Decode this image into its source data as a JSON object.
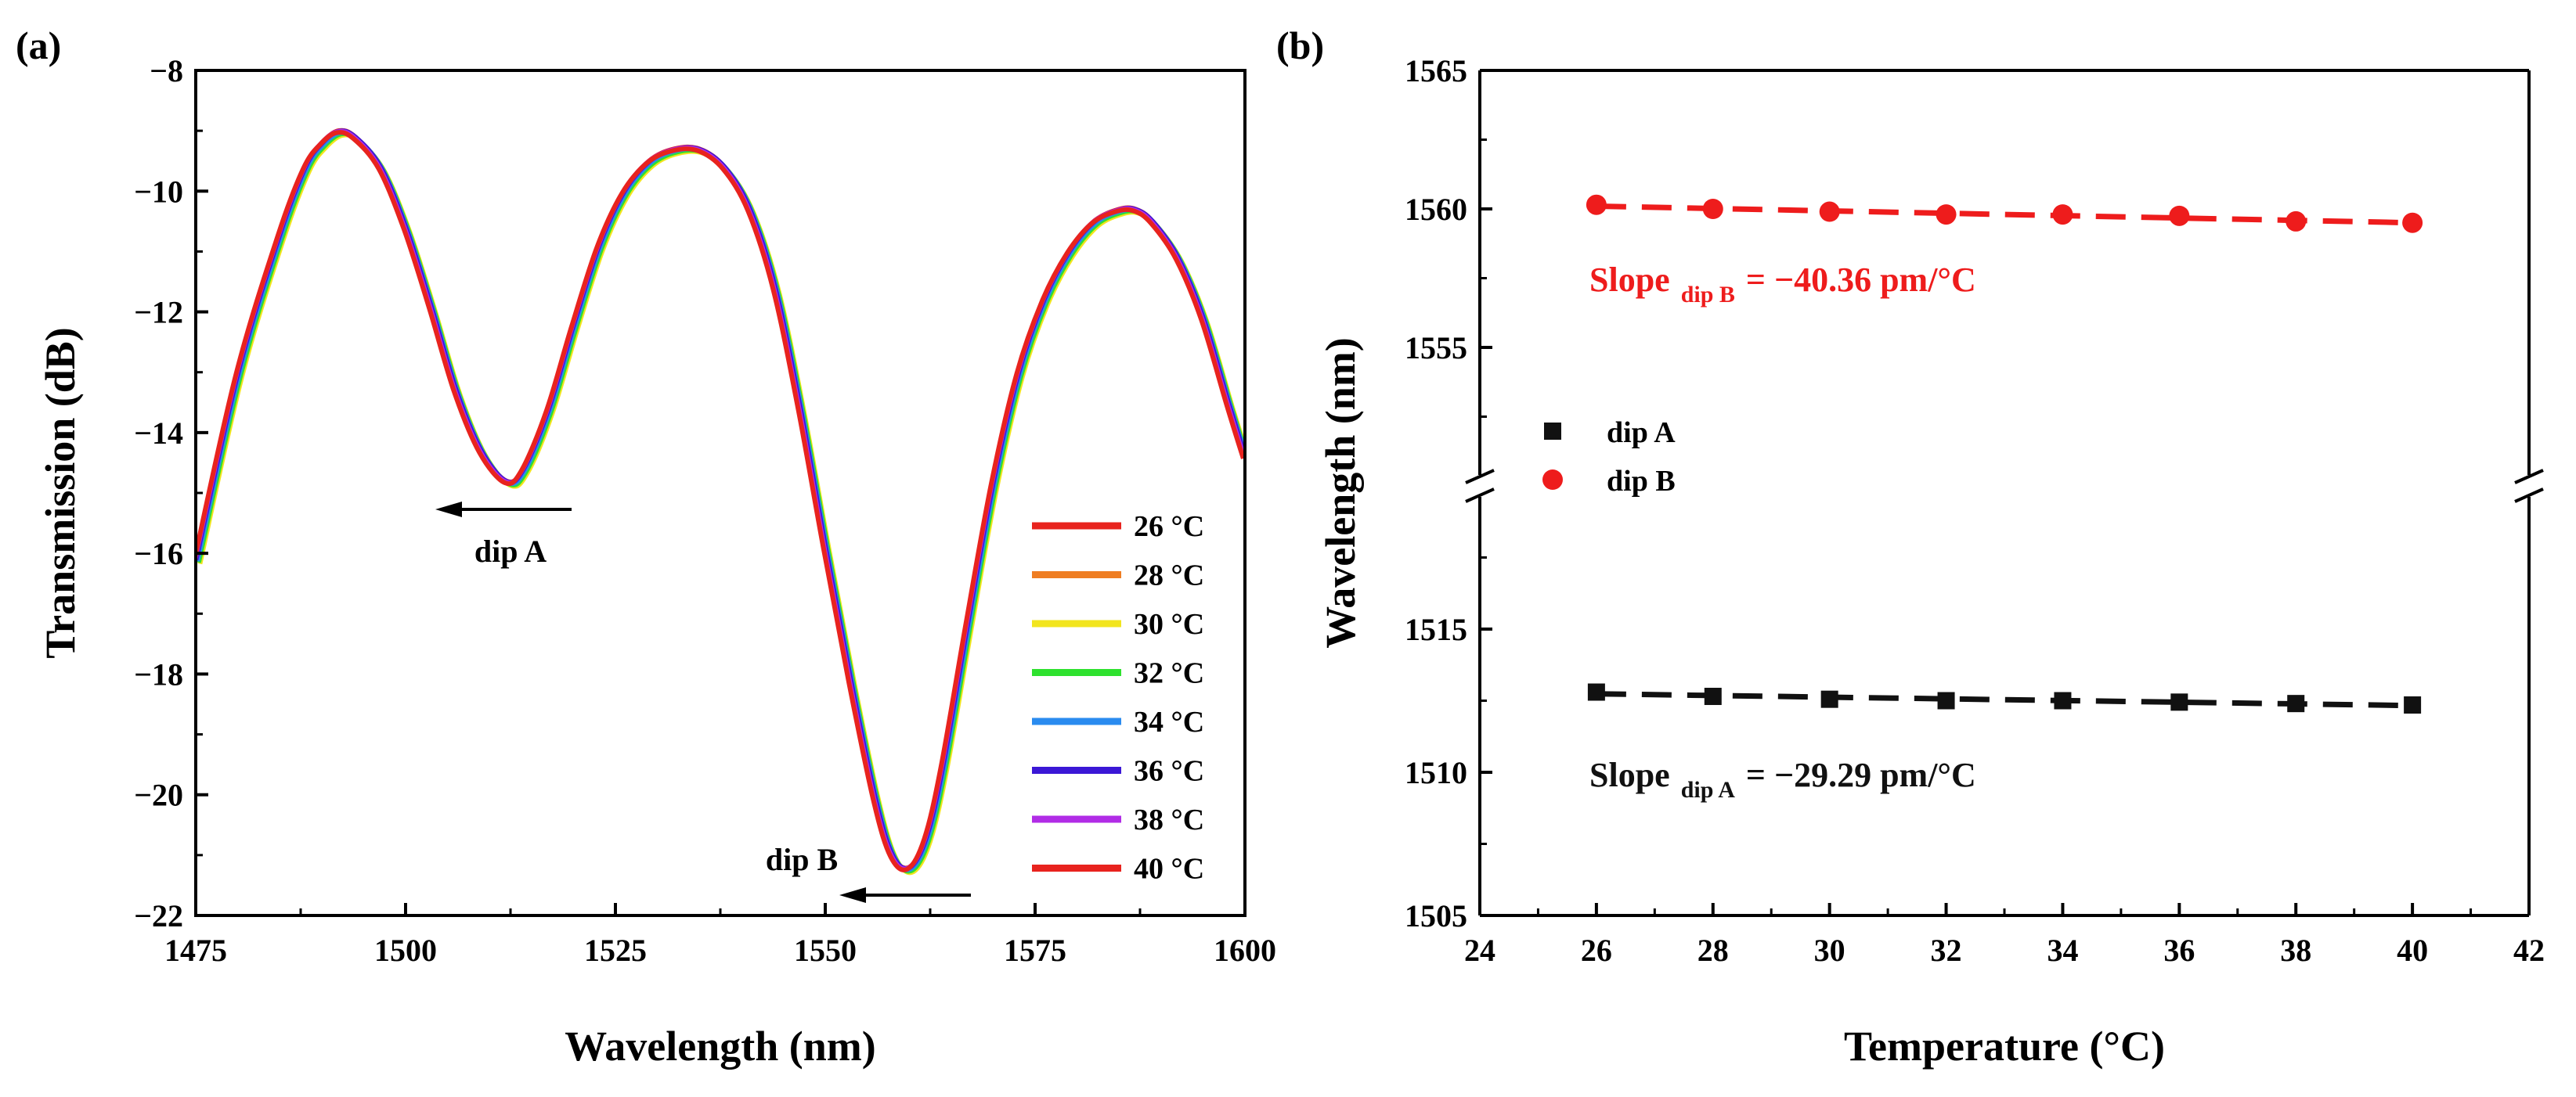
{
  "chart_data": [
    {
      "panel": "(a)",
      "type": "line",
      "xlabel": "Wavelength (nm)",
      "ylabel": "Transmission (dB)",
      "xlim": [
        1475,
        1600
      ],
      "ylim": [
        -22,
        -8
      ],
      "xticks": [
        1475,
        1500,
        1525,
        1550,
        1575,
        1600
      ],
      "yticks": [
        -22,
        -20,
        -18,
        -16,
        -14,
        -12,
        -10,
        -8
      ],
      "legend": "bottom-right",
      "series": [
        {
          "name": "26 °C",
          "color": "#e8231e",
          "shift": 0.0
        },
        {
          "name": "28 °C",
          "color": "#ef7d22",
          "shift": 0.25
        },
        {
          "name": "30 °C",
          "color": "#f2e51e",
          "shift": 0.5
        },
        {
          "name": "32 °C",
          "color": "#2ee12e",
          "shift": 0.35
        },
        {
          "name": "34 °C",
          "color": "#2a8bef",
          "shift": 0.2
        },
        {
          "name": "36 °C",
          "color": "#3b17d6",
          "shift": 0.05
        },
        {
          "name": "38 °C",
          "color": "#b12ce6",
          "shift": -0.1
        },
        {
          "name": "40 °C",
          "color": "#e8231e",
          "shift": -0.2
        }
      ],
      "curve": {
        "x": [
          1475,
          1480,
          1485,
          1488,
          1490,
          1492,
          1494,
          1497,
          1500,
          1503,
          1506,
          1509,
          1512,
          1514,
          1517,
          1520,
          1523,
          1526,
          1529,
          1532,
          1535,
          1538,
          1541,
          1544,
          1547,
          1550,
          1553,
          1556,
          1558,
          1560,
          1562,
          1564,
          1567,
          1570,
          1573,
          1576,
          1579,
          1582,
          1585,
          1587,
          1589,
          1592,
          1595,
          1598,
          1600
        ],
        "y": [
          -16.1,
          -13.0,
          -10.7,
          -9.6,
          -9.2,
          -9.0,
          -9.1,
          -9.6,
          -10.6,
          -11.9,
          -13.3,
          -14.3,
          -14.8,
          -14.6,
          -13.6,
          -12.2,
          -10.9,
          -10.0,
          -9.5,
          -9.3,
          -9.3,
          -9.6,
          -10.3,
          -11.6,
          -13.6,
          -15.9,
          -18.1,
          -20.1,
          -21.0,
          -21.2,
          -20.7,
          -19.5,
          -17.1,
          -14.8,
          -13.0,
          -11.8,
          -11.0,
          -10.5,
          -10.3,
          -10.3,
          -10.5,
          -11.1,
          -12.1,
          -13.5,
          -14.4
        ]
      },
      "annotations": [
        {
          "text": "dip A",
          "x": 1512,
          "y": -16.0
        },
        {
          "text": "dip B",
          "x": 1547,
          "y": -20.9
        }
      ]
    },
    {
      "panel": "(b)",
      "type": "scatter",
      "xlabel": "Temperature (°C)",
      "ylabel": "Wavelength (nm)",
      "xlim": [
        24,
        42
      ],
      "xticks": [
        24,
        26,
        28,
        30,
        32,
        34,
        36,
        38,
        40,
        42
      ],
      "broken_y_axis": true,
      "ylim_lower": [
        1505,
        1520
      ],
      "ylim_upper": [
        1550,
        1565
      ],
      "yticks_lower": [
        1505,
        1510,
        1515
      ],
      "yticks_upper": [
        1555,
        1560,
        1565
      ],
      "legend": "middle-left",
      "series": [
        {
          "name": "dip A",
          "marker": "square",
          "color": "#111111",
          "x": [
            26,
            28,
            30,
            32,
            34,
            36,
            38,
            40
          ],
          "y": [
            1512.8,
            1512.65,
            1512.55,
            1512.5,
            1512.5,
            1512.45,
            1512.4,
            1512.35
          ]
        },
        {
          "name": "dip B",
          "marker": "circle",
          "color": "#ee1c1c",
          "x": [
            26,
            28,
            30,
            32,
            34,
            36,
            38,
            40
          ],
          "y": [
            1560.15,
            1560.0,
            1559.9,
            1559.8,
            1559.8,
            1559.75,
            1559.55,
            1559.5
          ]
        }
      ],
      "fits": [
        {
          "series": "dip B",
          "label_main": "Slope",
          "label_sub": "dip B",
          "label_value": "= −40.36 pm/°C",
          "x": [
            26,
            40
          ],
          "y": [
            1560.1,
            1559.5
          ]
        },
        {
          "series": "dip A",
          "label_main": "Slope",
          "label_sub": "dip A",
          "label_value": "= −29.29 pm/°C",
          "x": [
            26,
            40
          ],
          "y": [
            1512.74,
            1512.33
          ]
        }
      ]
    }
  ]
}
